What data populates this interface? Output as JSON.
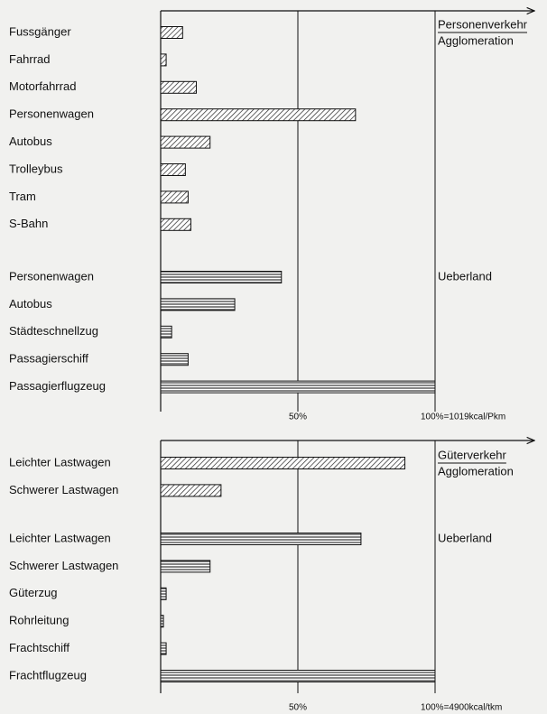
{
  "chart_data": [
    {
      "type": "bar",
      "title": "Personenverkehr",
      "groups": [
        {
          "name": "Agglomeration",
          "categories": [
            "Fussgänger",
            "Fahrrad",
            "Motorfahrrad",
            "Personenwagen",
            "Autobus",
            "Trolleybus",
            "Tram",
            "S-Bahn"
          ],
          "values": [
            8,
            2,
            13,
            71,
            18,
            9,
            10,
            11
          ]
        },
        {
          "name": "Ueberland",
          "categories": [
            "Personenwagen",
            "Autobus",
            "Städteschnellzug",
            "Passagierschiff",
            "Passagierflugzeug"
          ],
          "values": [
            44,
            27,
            4,
            10,
            100
          ]
        }
      ],
      "xlim": [
        0,
        100
      ],
      "xticks": [
        {
          "value": 50,
          "label": "50%"
        },
        {
          "value": 100,
          "label": "100%=1019kcal/Pkm"
        }
      ]
    },
    {
      "type": "bar",
      "title": "Güterverkehr",
      "groups": [
        {
          "name": "Agglomeration",
          "categories": [
            "Leichter Lastwagen",
            "Schwerer Lastwagen"
          ],
          "values": [
            89,
            22
          ]
        },
        {
          "name": "Ueberland",
          "categories": [
            "Leichter Lastwagen",
            "Schwerer Lastwagen",
            "Güterzug",
            "Rohrleitung",
            "Frachtschiff",
            "Frachtflugzeug"
          ],
          "values": [
            73,
            18,
            2,
            1,
            2,
            100
          ]
        }
      ],
      "xlim": [
        0,
        100
      ],
      "xticks": [
        {
          "value": 50,
          "label": "50%"
        },
        {
          "value": 100,
          "label": "100%=4900kcal/tkm"
        }
      ]
    }
  ]
}
